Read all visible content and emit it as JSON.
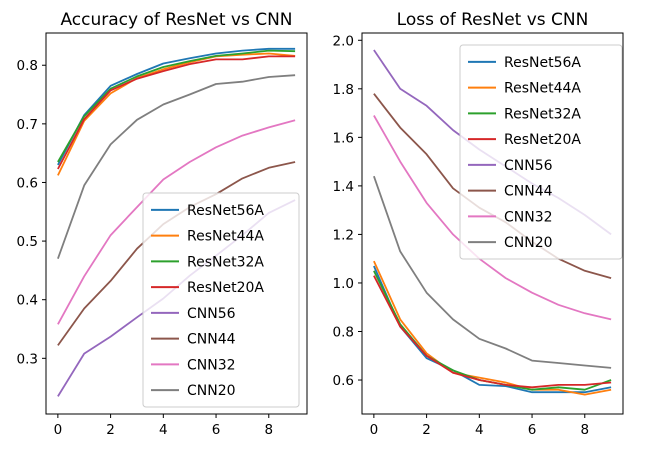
{
  "chart_data": [
    {
      "type": "line",
      "title": "Accuracy of ResNet vs CNN",
      "xlabel": "",
      "ylabel": "",
      "xlim": [
        -0.45,
        9.45
      ],
      "ylim": [
        0.205,
        0.855
      ],
      "xticks": [
        0,
        2,
        4,
        6,
        8
      ],
      "yticks": [
        0.3,
        0.4,
        0.5,
        0.6,
        0.7,
        0.8
      ],
      "ytick_labels": [
        "0.3",
        "0.4",
        "0.5",
        "0.6",
        "0.7",
        "0.8"
      ],
      "legend_position": "lower-right",
      "x": [
        0,
        1,
        2,
        3,
        4,
        5,
        6,
        7,
        8,
        9
      ],
      "series": [
        {
          "name": "ResNet56A",
          "color": "#1f77b4",
          "values": [
            0.63,
            0.715,
            0.765,
            0.785,
            0.803,
            0.812,
            0.82,
            0.825,
            0.828,
            0.828
          ]
        },
        {
          "name": "ResNet44A",
          "color": "#ff7f0e",
          "values": [
            0.612,
            0.705,
            0.752,
            0.778,
            0.793,
            0.805,
            0.815,
            0.818,
            0.82,
            0.816
          ]
        },
        {
          "name": "ResNet32A",
          "color": "#2ca02c",
          "values": [
            0.635,
            0.713,
            0.76,
            0.781,
            0.797,
            0.807,
            0.816,
            0.82,
            0.825,
            0.824
          ]
        },
        {
          "name": "ResNet20A",
          "color": "#d62728",
          "values": [
            0.623,
            0.708,
            0.757,
            0.777,
            0.79,
            0.802,
            0.81,
            0.81,
            0.815,
            0.815
          ]
        },
        {
          "name": "CNN56",
          "color": "#9467bd",
          "values": [
            0.235,
            0.308,
            0.337,
            0.37,
            0.402,
            0.441,
            0.475,
            0.51,
            0.548,
            0.57
          ]
        },
        {
          "name": "CNN44",
          "color": "#8c564b",
          "values": [
            0.322,
            0.385,
            0.432,
            0.487,
            0.529,
            0.558,
            0.58,
            0.607,
            0.625,
            0.635
          ]
        },
        {
          "name": "CNN32",
          "color": "#e377c2",
          "values": [
            0.358,
            0.44,
            0.51,
            0.558,
            0.605,
            0.635,
            0.66,
            0.68,
            0.694,
            0.706
          ]
        },
        {
          "name": "CNN20",
          "color": "#7f7f7f",
          "values": [
            0.47,
            0.595,
            0.665,
            0.707,
            0.733,
            0.75,
            0.768,
            0.772,
            0.78,
            0.783
          ]
        }
      ]
    },
    {
      "type": "line",
      "title": "Loss of ResNet vs CNN",
      "xlabel": "",
      "ylabel": "",
      "xlim": [
        -0.45,
        9.45
      ],
      "ylim": [
        0.46,
        2.03
      ],
      "xticks": [
        0,
        2,
        4,
        6,
        8
      ],
      "yticks": [
        0.6,
        0.8,
        1.0,
        1.2,
        1.4,
        1.6,
        1.8,
        2.0
      ],
      "ytick_labels": [
        "0.6",
        "0.8",
        "1.0",
        "1.2",
        "1.4",
        "1.6",
        "1.8",
        "2.0"
      ],
      "legend_position": "upper-right",
      "x": [
        0,
        1,
        2,
        3,
        4,
        5,
        6,
        7,
        8,
        9
      ],
      "series": [
        {
          "name": "ResNet56A",
          "color": "#1f77b4",
          "values": [
            1.07,
            0.82,
            0.69,
            0.64,
            0.58,
            0.575,
            0.55,
            0.55,
            0.55,
            0.57
          ]
        },
        {
          "name": "ResNet44A",
          "color": "#ff7f0e",
          "values": [
            1.09,
            0.85,
            0.71,
            0.63,
            0.61,
            0.59,
            0.56,
            0.56,
            0.54,
            0.56
          ]
        },
        {
          "name": "ResNet32A",
          "color": "#2ca02c",
          "values": [
            1.05,
            0.83,
            0.7,
            0.64,
            0.6,
            0.58,
            0.56,
            0.57,
            0.56,
            0.6
          ]
        },
        {
          "name": "ResNet20A",
          "color": "#d62728",
          "values": [
            1.03,
            0.82,
            0.7,
            0.63,
            0.6,
            0.58,
            0.57,
            0.58,
            0.58,
            0.59
          ]
        },
        {
          "name": "CNN56",
          "color": "#9467bd",
          "values": [
            1.96,
            1.8,
            1.73,
            1.63,
            1.55,
            1.48,
            1.41,
            1.35,
            1.28,
            1.2
          ]
        },
        {
          "name": "CNN44",
          "color": "#8c564b",
          "values": [
            1.78,
            1.64,
            1.53,
            1.39,
            1.31,
            1.25,
            1.17,
            1.1,
            1.05,
            1.02
          ]
        },
        {
          "name": "CNN32",
          "color": "#e377c2",
          "values": [
            1.69,
            1.5,
            1.33,
            1.2,
            1.1,
            1.02,
            0.96,
            0.91,
            0.875,
            0.85
          ]
        },
        {
          "name": "CNN20",
          "color": "#7f7f7f",
          "values": [
            1.44,
            1.13,
            0.96,
            0.85,
            0.77,
            0.73,
            0.68,
            0.67,
            0.66,
            0.65
          ]
        }
      ]
    }
  ]
}
